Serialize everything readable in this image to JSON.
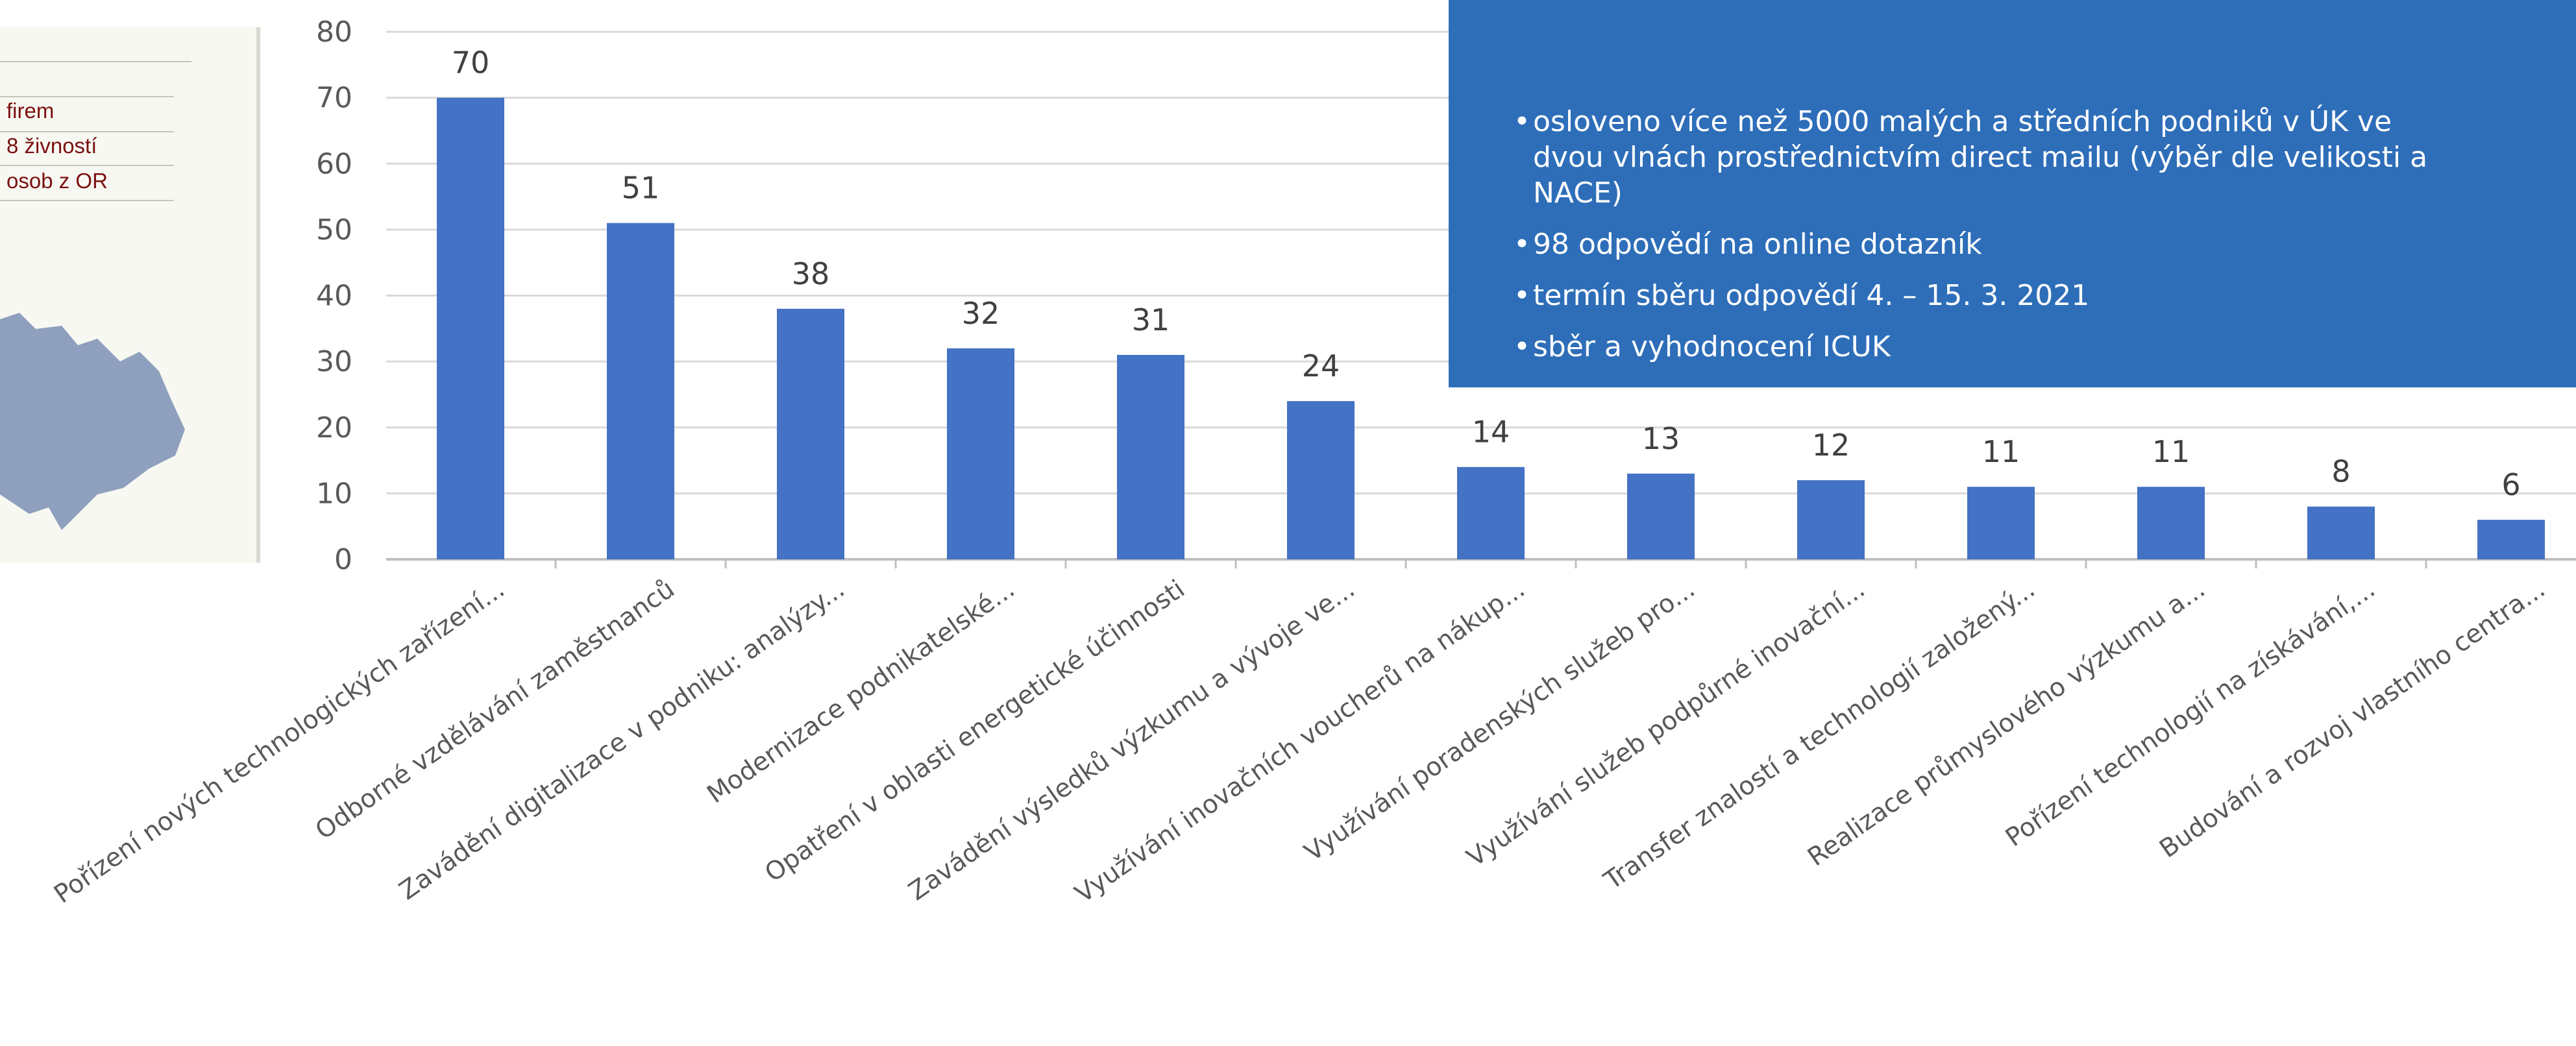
{
  "left_panel": {
    "lines": [
      "firem",
      "8 živností",
      "osob z OR"
    ]
  },
  "info_box": {
    "bullets": [
      "osloveno více než 5000 malých a středních podniků v ÚK ve dvou vlnách prostřednictvím direct mailu (výběr dle velikosti a NACE)",
      "98 odpovědí na online dotazník",
      "termín sběru odpovědí 4. – 15. 3. 2021",
      "sběr a vyhodnocení ICUK"
    ],
    "background": "#2e6eb9"
  },
  "chart_data": {
    "type": "bar",
    "title": "",
    "xlabel": "",
    "ylabel": "",
    "ylim": [
      0,
      80
    ],
    "yticks": [
      0,
      10,
      20,
      30,
      40,
      50,
      60,
      70,
      80
    ],
    "grid": true,
    "bar_color": "#4472c4",
    "categories": [
      "Pořízení nových technologických zařízení...",
      "Odborné vzdělávání zaměstnanců",
      "Zavádění digitalizace v podniku: analýzy...",
      "Modernizace podnikatelské...",
      "Opatření v oblasti energetické účinnosti",
      "Zavádění výsledků výzkumu a vývoje ve...",
      "Využívání inovačních voucherů na nákup...",
      "Využívání poradenských služeb pro...",
      "Využívání služeb podpůrné inovační...",
      "Transfer znalostí a technologií založený...",
      "Realizace průmyslového výzkumu a...",
      "Pořízení technologií na získávání,...",
      "Budování a rozvoj vlastního centra..."
    ],
    "values": [
      70,
      51,
      38,
      32,
      31,
      24,
      14,
      13,
      12,
      11,
      11,
      8,
      6
    ]
  }
}
